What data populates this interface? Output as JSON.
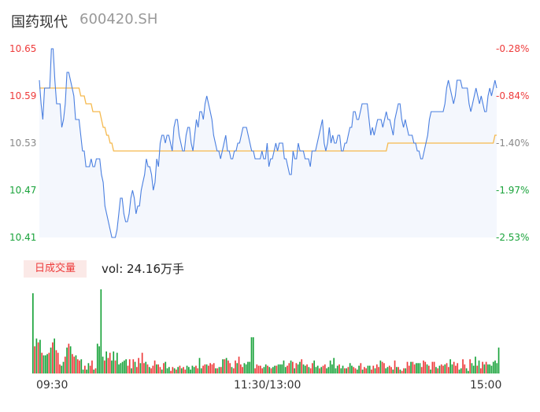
{
  "header": {
    "name": "国药现代",
    "code": "600420.SH"
  },
  "colors": {
    "up": "#ee3b3b",
    "down": "#1aa33b",
    "price_line": "#4a7fe0",
    "avg_line": "#f5b94d",
    "area_fill": "#f4f7fd"
  },
  "volume_panel": {
    "badge_label": "日成交量",
    "volume_text": "vol: 24.16万手"
  },
  "chart_data": [
    {
      "type": "line",
      "price_ticks": [
        "10.65",
        "10.59",
        "10.53",
        "10.47",
        "10.41"
      ],
      "pct_ticks": [
        "-0.28%",
        "-0.84%",
        "-1.40%",
        "-1.97%",
        "-2.53%"
      ],
      "ylim": [
        10.41,
        10.65
      ],
      "x_labels": [
        "09:30",
        "11:30/13:00",
        "15:00"
      ],
      "series": [
        {
          "name": "price",
          "values": [
            10.61,
            10.58,
            10.56,
            10.6,
            10.6,
            10.6,
            10.6,
            10.65,
            10.65,
            10.61,
            10.58,
            10.58,
            10.58,
            10.55,
            10.56,
            10.58,
            10.62,
            10.62,
            10.61,
            10.6,
            10.59,
            10.56,
            10.56,
            10.56,
            10.54,
            10.52,
            10.52,
            10.5,
            10.5,
            10.5,
            10.51,
            10.5,
            10.5,
            10.51,
            10.51,
            10.51,
            10.49,
            10.48,
            10.45,
            10.44,
            10.43,
            10.42,
            10.41,
            10.41,
            10.41,
            10.42,
            10.44,
            10.46,
            10.46,
            10.44,
            10.43,
            10.43,
            10.44,
            10.46,
            10.47,
            10.46,
            10.44,
            10.45,
            10.45,
            10.47,
            10.48,
            10.49,
            10.51,
            10.5,
            10.5,
            10.49,
            10.47,
            10.48,
            10.51,
            10.5,
            10.53,
            10.54,
            10.54,
            10.53,
            10.54,
            10.54,
            10.53,
            10.52,
            10.55,
            10.56,
            10.56,
            10.54,
            10.53,
            10.52,
            10.52,
            10.54,
            10.55,
            10.55,
            10.53,
            10.52,
            10.54,
            10.56,
            10.55,
            10.57,
            10.57,
            10.56,
            10.58,
            10.59,
            10.58,
            10.57,
            10.56,
            10.54,
            10.53,
            10.52,
            10.52,
            10.51,
            10.52,
            10.53,
            10.54,
            10.52,
            10.52,
            10.51,
            10.51,
            10.52,
            10.52,
            10.53,
            10.53,
            10.54,
            10.55,
            10.55,
            10.55,
            10.54,
            10.53,
            10.52,
            10.52,
            10.51,
            10.51,
            10.51,
            10.51,
            10.52,
            10.51,
            10.51,
            10.53,
            10.5,
            10.51,
            10.51,
            10.52,
            10.53,
            10.52,
            10.53,
            10.53,
            10.53,
            10.51,
            10.51,
            10.5,
            10.49,
            10.49,
            10.52,
            10.51,
            10.51,
            10.53,
            10.52,
            10.52,
            10.52,
            10.51,
            10.51,
            10.51,
            10.5,
            10.52,
            10.52,
            10.52,
            10.53,
            10.54,
            10.55,
            10.56,
            10.53,
            10.52,
            10.53,
            10.55,
            10.53,
            10.54,
            10.53,
            10.53,
            10.54,
            10.54,
            10.52,
            10.52,
            10.53,
            10.53,
            10.54,
            10.55,
            10.55,
            10.57,
            10.57,
            10.56,
            10.56,
            10.57,
            10.58,
            10.58,
            10.58,
            10.58,
            10.56,
            10.54,
            10.55,
            10.54,
            10.55,
            10.56,
            10.56,
            10.56,
            10.55,
            10.56,
            10.57,
            10.56,
            10.56,
            10.55,
            10.54,
            10.56,
            10.57,
            10.58,
            10.58,
            10.56,
            10.55,
            10.56,
            10.55,
            10.54,
            10.54,
            10.54,
            10.53,
            10.53,
            10.52,
            10.52,
            10.51,
            10.51,
            10.52,
            10.53,
            10.54,
            10.56,
            10.57,
            10.57,
            10.57,
            10.57,
            10.57,
            10.57,
            10.57,
            10.57,
            10.58,
            10.6,
            10.61,
            10.6,
            10.59,
            10.58,
            10.59,
            10.61,
            10.61,
            10.61,
            10.6,
            10.6,
            10.6,
            10.6,
            10.58,
            10.57,
            10.58,
            10.59,
            10.6,
            10.59,
            10.58,
            10.59,
            10.58,
            10.57,
            10.57,
            10.59,
            10.6,
            10.59,
            10.6,
            10.61,
            10.6
          ]
        },
        {
          "name": "avg",
          "values": [
            10.6,
            10.6,
            10.6,
            10.6,
            10.6,
            10.6,
            10.6,
            10.6,
            10.6,
            10.6,
            10.6,
            10.6,
            10.6,
            10.6,
            10.6,
            10.6,
            10.6,
            10.6,
            10.6,
            10.6,
            10.6,
            10.6,
            10.6,
            10.6,
            10.59,
            10.59,
            10.59,
            10.58,
            10.58,
            10.58,
            10.58,
            10.57,
            10.57,
            10.57,
            10.57,
            10.57,
            10.56,
            10.55,
            10.55,
            10.54,
            10.54,
            10.53,
            10.53,
            10.52,
            10.52,
            10.52,
            10.52,
            10.52,
            10.52,
            10.52,
            10.52,
            10.52,
            10.52,
            10.52,
            10.52,
            10.52,
            10.52,
            10.52,
            10.52,
            10.52,
            10.52,
            10.52,
            10.52,
            10.52,
            10.52,
            10.52,
            10.52,
            10.52,
            10.52,
            10.52,
            10.52,
            10.52,
            10.52,
            10.52,
            10.52,
            10.52,
            10.52,
            10.52,
            10.52,
            10.52,
            10.52,
            10.52,
            10.52,
            10.52,
            10.52,
            10.52,
            10.52,
            10.52,
            10.52,
            10.52,
            10.52,
            10.52,
            10.52,
            10.52,
            10.52,
            10.52,
            10.52,
            10.52,
            10.52,
            10.52,
            10.52,
            10.52,
            10.52,
            10.52,
            10.52,
            10.52,
            10.52,
            10.52,
            10.52,
            10.52,
            10.52,
            10.52,
            10.52,
            10.52,
            10.52,
            10.52,
            10.52,
            10.52,
            10.52,
            10.52,
            10.52,
            10.52,
            10.52,
            10.52,
            10.52,
            10.52,
            10.52,
            10.52,
            10.52,
            10.52,
            10.52,
            10.52,
            10.52,
            10.52,
            10.52,
            10.52,
            10.52,
            10.52,
            10.52,
            10.52,
            10.52,
            10.52,
            10.52,
            10.52,
            10.52,
            10.52,
            10.52,
            10.52,
            10.52,
            10.52,
            10.52,
            10.52,
            10.52,
            10.52,
            10.52,
            10.52,
            10.52,
            10.52,
            10.52,
            10.52,
            10.52,
            10.52,
            10.52,
            10.52,
            10.52,
            10.52,
            10.52,
            10.52,
            10.52,
            10.52,
            10.52,
            10.52,
            10.52,
            10.52,
            10.52,
            10.52,
            10.52,
            10.52,
            10.52,
            10.52,
            10.52,
            10.52,
            10.52,
            10.52,
            10.52,
            10.52,
            10.52,
            10.52,
            10.52,
            10.52,
            10.52,
            10.52,
            10.52,
            10.52,
            10.52,
            10.52,
            10.52,
            10.52,
            10.52,
            10.52,
            10.52,
            10.52,
            10.53,
            10.53,
            10.53,
            10.53,
            10.53,
            10.53,
            10.53,
            10.53,
            10.53,
            10.53,
            10.53,
            10.53,
            10.53,
            10.53,
            10.53,
            10.53,
            10.53,
            10.53,
            10.53,
            10.53,
            10.53,
            10.53,
            10.53,
            10.53,
            10.53,
            10.53,
            10.53,
            10.53,
            10.53,
            10.53,
            10.53,
            10.53,
            10.53,
            10.53,
            10.53,
            10.53,
            10.53,
            10.53,
            10.53,
            10.53,
            10.53,
            10.53,
            10.53,
            10.53,
            10.53,
            10.53,
            10.53,
            10.53,
            10.53,
            10.53,
            10.53,
            10.53,
            10.53,
            10.53,
            10.53,
            10.53,
            10.53,
            10.53,
            10.53,
            10.53,
            10.53,
            10.53,
            10.54,
            10.54
          ]
        }
      ]
    },
    {
      "type": "bar",
      "x_labels": [
        "09:30",
        "11:30/13:00",
        "15:00"
      ],
      "values": [
        62,
        21,
        27,
        24,
        26,
        16,
        14,
        14,
        15,
        16,
        20,
        24,
        27,
        18,
        16,
        7,
        6,
        9,
        13,
        20,
        23,
        21,
        15,
        13,
        14,
        11,
        10,
        11,
        3,
        6,
        3,
        8,
        6,
        10,
        3,
        4,
        23,
        21,
        65,
        13,
        10,
        17,
        12,
        16,
        10,
        17,
        10,
        16,
        7,
        8,
        9,
        10,
        11,
        6,
        11,
        4,
        11,
        9,
        5,
        12,
        8,
        16,
        8,
        9,
        7,
        5,
        4,
        6,
        10,
        7,
        7,
        5,
        3,
        8,
        9,
        4,
        5,
        2,
        5,
        4,
        3,
        5,
        6,
        4,
        5,
        3,
        6,
        5,
        3,
        6,
        5,
        6,
        4,
        12,
        4,
        6,
        7,
        7,
        6,
        8,
        7,
        8,
        4,
        4,
        5,
        5,
        11,
        11,
        12,
        10,
        8,
        5,
        4,
        10,
        8,
        13,
        7,
        5,
        8,
        7,
        9,
        9,
        28,
        28,
        4,
        7,
        6,
        6,
        4,
        5,
        7,
        6,
        5,
        4,
        5,
        6,
        6,
        7,
        7,
        7,
        10,
        5,
        6,
        8,
        10,
        9,
        4,
        8,
        7,
        9,
        11,
        7,
        6,
        7,
        5,
        4,
        8,
        10,
        5,
        6,
        4,
        5,
        6,
        7,
        4,
        5,
        10,
        7,
        12,
        4,
        6,
        7,
        4,
        6,
        4,
        4,
        5,
        8,
        6,
        5,
        4,
        3,
        6,
        8,
        3,
        5,
        4,
        6,
        6,
        3,
        6,
        4,
        7,
        5,
        10,
        9,
        8,
        4,
        5,
        6,
        5,
        3,
        10,
        5,
        5,
        3,
        2,
        4,
        4,
        9,
        6,
        9,
        9,
        7,
        8,
        8,
        8,
        5,
        10,
        9,
        7,
        6,
        3,
        9,
        9,
        5,
        4,
        6,
        7,
        6,
        7,
        8,
        5,
        11,
        7,
        9,
        6,
        8,
        3,
        4,
        11,
        7,
        4,
        2,
        11,
        8,
        6,
        13,
        6,
        10,
        4,
        9,
        7,
        9,
        7,
        7,
        6,
        9,
        10,
        8,
        20
      ],
      "directions": [
        "d",
        "u",
        "d",
        "u",
        "d",
        "u",
        "d",
        "d",
        "d",
        "u",
        "d",
        "u",
        "d",
        "u",
        "u",
        "u",
        "d",
        "d",
        "u",
        "d",
        "u",
        "d",
        "u",
        "u",
        "d",
        "u",
        "u",
        "d",
        "d",
        "u",
        "d",
        "d",
        "u",
        "u",
        "d",
        "u",
        "d",
        "d",
        "d",
        "d",
        "u",
        "d",
        "u",
        "u",
        "d",
        "d",
        "u",
        "d",
        "d",
        "d",
        "d",
        "d",
        "d",
        "u",
        "u",
        "d",
        "u",
        "d",
        "u",
        "u",
        "d",
        "u",
        "u",
        "d",
        "u",
        "d",
        "u",
        "u",
        "u",
        "d",
        "u",
        "u",
        "d",
        "u",
        "d",
        "d",
        "d",
        "u",
        "u",
        "d",
        "u",
        "d",
        "u",
        "d",
        "u",
        "u",
        "d",
        "d",
        "d",
        "d",
        "d",
        "u",
        "u",
        "d",
        "d",
        "u",
        "u",
        "d",
        "u",
        "u",
        "u",
        "u",
        "d",
        "u",
        "d",
        "u",
        "d",
        "u",
        "d",
        "u",
        "u",
        "d",
        "u",
        "u",
        "d",
        "u",
        "u",
        "u",
        "d",
        "d",
        "d",
        "d",
        "d",
        "d",
        "u",
        "u",
        "u",
        "u",
        "u",
        "d",
        "d",
        "u",
        "d",
        "u",
        "d",
        "d",
        "u",
        "d",
        "d",
        "d",
        "d",
        "d",
        "u",
        "u",
        "d",
        "u",
        "d",
        "u",
        "d",
        "d",
        "u",
        "d",
        "d",
        "u",
        "d",
        "u",
        "u",
        "d",
        "d",
        "d",
        "u",
        "d",
        "u",
        "u",
        "d",
        "d",
        "d",
        "d",
        "d",
        "d",
        "d",
        "u",
        "d",
        "d",
        "u",
        "d",
        "u",
        "d",
        "d",
        "u",
        "u",
        "d",
        "d",
        "u",
        "d",
        "u",
        "u",
        "d",
        "d",
        "u",
        "u",
        "d",
        "u",
        "u",
        "d",
        "u",
        "u",
        "d",
        "d",
        "u",
        "u",
        "d",
        "u",
        "d",
        "u",
        "d",
        "u",
        "u",
        "d",
        "u",
        "u",
        "d",
        "u",
        "u",
        "d",
        "d",
        "d",
        "u",
        "u",
        "u",
        "d",
        "u",
        "d",
        "u",
        "u",
        "d",
        "u",
        "d",
        "u",
        "u",
        "d",
        "u",
        "u",
        "d",
        "d",
        "u",
        "u",
        "u",
        "d",
        "d",
        "u",
        "u",
        "d",
        "d",
        "u",
        "d",
        "d",
        "d",
        "u",
        "d",
        "u",
        "u",
        "d",
        "u"
      ]
    }
  ]
}
